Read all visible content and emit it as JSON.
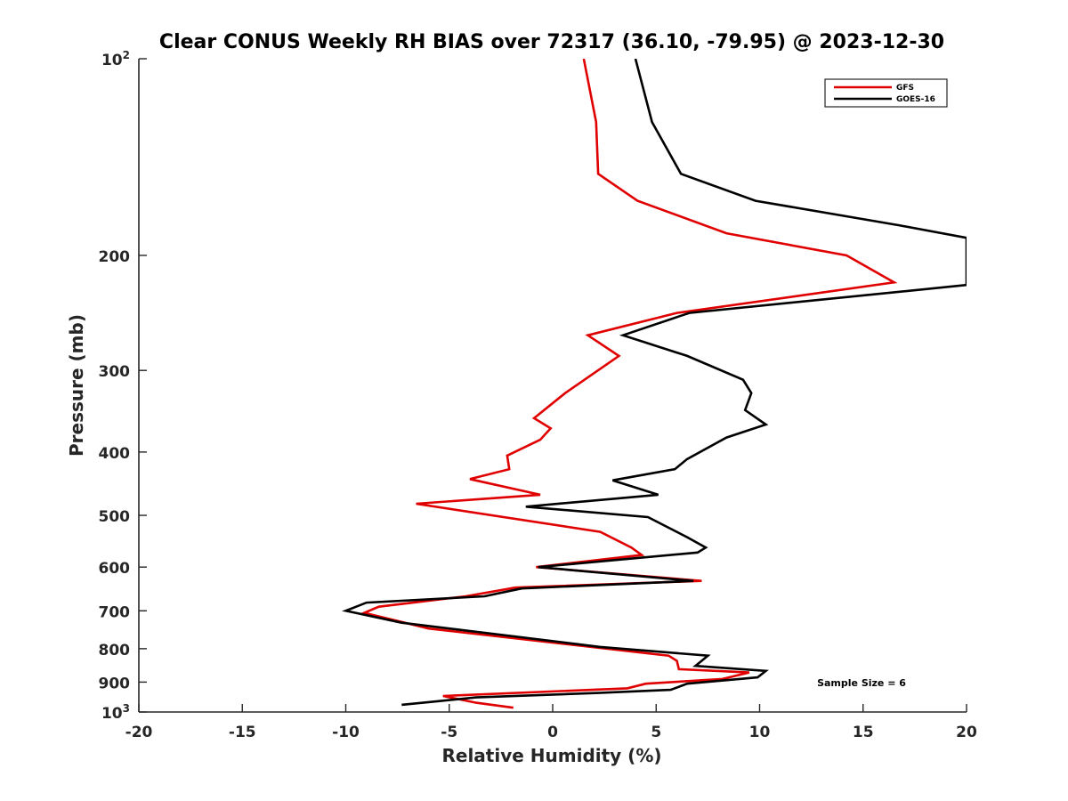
{
  "chart_data": {
    "type": "line",
    "title": "Clear CONUS Weekly RH BIAS over 72317 (36.10, -79.95) @ 2023-12-30",
    "xlabel": "Relative Humidity (%)",
    "ylabel": "Pressure (mb)",
    "xlim": [
      -20,
      20
    ],
    "ylim": [
      100,
      1000
    ],
    "y_scale": "log",
    "y_reversed": true,
    "x_ticks": [
      -20,
      -15,
      -10,
      -5,
      0,
      5,
      10,
      15,
      20
    ],
    "x_tick_labels": [
      "-20",
      "-15",
      "-10",
      "-5",
      "0",
      "5",
      "10",
      "15",
      "20"
    ],
    "y_ticks": [
      100,
      200,
      300,
      400,
      500,
      600,
      700,
      800,
      900,
      1000
    ],
    "y_tick_labels": [
      {
        "base": "10",
        "exp": "2"
      },
      {
        "base": "200",
        "exp": ""
      },
      {
        "base": "300",
        "exp": ""
      },
      {
        "base": "400",
        "exp": ""
      },
      {
        "base": "500",
        "exp": ""
      },
      {
        "base": "600",
        "exp": ""
      },
      {
        "base": "700",
        "exp": ""
      },
      {
        "base": "800",
        "exp": ""
      },
      {
        "base": "900",
        "exp": ""
      },
      {
        "base": "10",
        "exp": "3"
      }
    ],
    "grid": false,
    "legend_position": "top-right",
    "annotation": "Sample Size = 6",
    "series": [
      {
        "name": "GFS",
        "color": "#e00000",
        "points": [
          {
            "x": 1.5,
            "y": 100
          },
          {
            "x": 2.1,
            "y": 125
          },
          {
            "x": 2.2,
            "y": 150
          },
          {
            "x": 4.1,
            "y": 165
          },
          {
            "x": 8.4,
            "y": 185
          },
          {
            "x": 14.2,
            "y": 200
          },
          {
            "x": 16.5,
            "y": 220
          },
          {
            "x": 6.0,
            "y": 245
          },
          {
            "x": 1.7,
            "y": 265
          },
          {
            "x": 3.2,
            "y": 285
          },
          {
            "x": 0.6,
            "y": 325
          },
          {
            "x": -0.9,
            "y": 355
          },
          {
            "x": -0.1,
            "y": 368
          },
          {
            "x": -0.6,
            "y": 383
          },
          {
            "x": -2.2,
            "y": 405
          },
          {
            "x": -2.1,
            "y": 425
          },
          {
            "x": -4.0,
            "y": 440
          },
          {
            "x": -0.6,
            "y": 465
          },
          {
            "x": -6.6,
            "y": 480
          },
          {
            "x": 2.3,
            "y": 530
          },
          {
            "x": 3.8,
            "y": 560
          },
          {
            "x": 4.3,
            "y": 575
          },
          {
            "x": -0.8,
            "y": 600
          },
          {
            "x": 7.2,
            "y": 630
          },
          {
            "x": -1.8,
            "y": 645
          },
          {
            "x": -4.2,
            "y": 665
          },
          {
            "x": -8.4,
            "y": 690
          },
          {
            "x": -9.1,
            "y": 705
          },
          {
            "x": -6.0,
            "y": 745
          },
          {
            "x": 5.6,
            "y": 820
          },
          {
            "x": 6.0,
            "y": 835
          },
          {
            "x": 6.1,
            "y": 860
          },
          {
            "x": 9.5,
            "y": 870
          },
          {
            "x": 8.2,
            "y": 890
          },
          {
            "x": 4.5,
            "y": 905
          },
          {
            "x": 3.6,
            "y": 920
          },
          {
            "x": -5.3,
            "y": 945
          },
          {
            "x": -3.7,
            "y": 968
          },
          {
            "x": -1.9,
            "y": 985
          }
        ]
      },
      {
        "name": "GOES-16",
        "color": "#000000",
        "points": [
          {
            "x": 4.0,
            "y": 100
          },
          {
            "x": 4.8,
            "y": 125
          },
          {
            "x": 6.2,
            "y": 150
          },
          {
            "x": 9.8,
            "y": 165
          },
          {
            "x": 16.8,
            "y": 180
          },
          {
            "x": 20.0,
            "y": 188
          },
          {
            "x": 20.0,
            "y": 222
          },
          {
            "x": 6.6,
            "y": 245
          },
          {
            "x": 3.4,
            "y": 265
          },
          {
            "x": 6.5,
            "y": 285
          },
          {
            "x": 9.2,
            "y": 310
          },
          {
            "x": 9.6,
            "y": 325
          },
          {
            "x": 9.3,
            "y": 345
          },
          {
            "x": 10.3,
            "y": 363
          },
          {
            "x": 8.4,
            "y": 380
          },
          {
            "x": 6.5,
            "y": 410
          },
          {
            "x": 5.9,
            "y": 425
          },
          {
            "x": 2.9,
            "y": 442
          },
          {
            "x": 5.1,
            "y": 465
          },
          {
            "x": -1.3,
            "y": 485
          },
          {
            "x": 4.6,
            "y": 503
          },
          {
            "x": 6.5,
            "y": 540
          },
          {
            "x": 7.4,
            "y": 560
          },
          {
            "x": 7.0,
            "y": 570
          },
          {
            "x": -0.7,
            "y": 600
          },
          {
            "x": 6.8,
            "y": 630
          },
          {
            "x": -1.5,
            "y": 647
          },
          {
            "x": -3.3,
            "y": 665
          },
          {
            "x": -9.0,
            "y": 680
          },
          {
            "x": -10.0,
            "y": 700
          },
          {
            "x": -7.3,
            "y": 730
          },
          {
            "x": 2.3,
            "y": 795
          },
          {
            "x": 7.5,
            "y": 820
          },
          {
            "x": 7.2,
            "y": 835
          },
          {
            "x": 6.9,
            "y": 850
          },
          {
            "x": 10.3,
            "y": 865
          },
          {
            "x": 9.9,
            "y": 885
          },
          {
            "x": 6.5,
            "y": 905
          },
          {
            "x": 5.7,
            "y": 925
          },
          {
            "x": 2.2,
            "y": 935
          },
          {
            "x": -3.7,
            "y": 950
          },
          {
            "x": -7.3,
            "y": 975
          }
        ]
      }
    ]
  }
}
